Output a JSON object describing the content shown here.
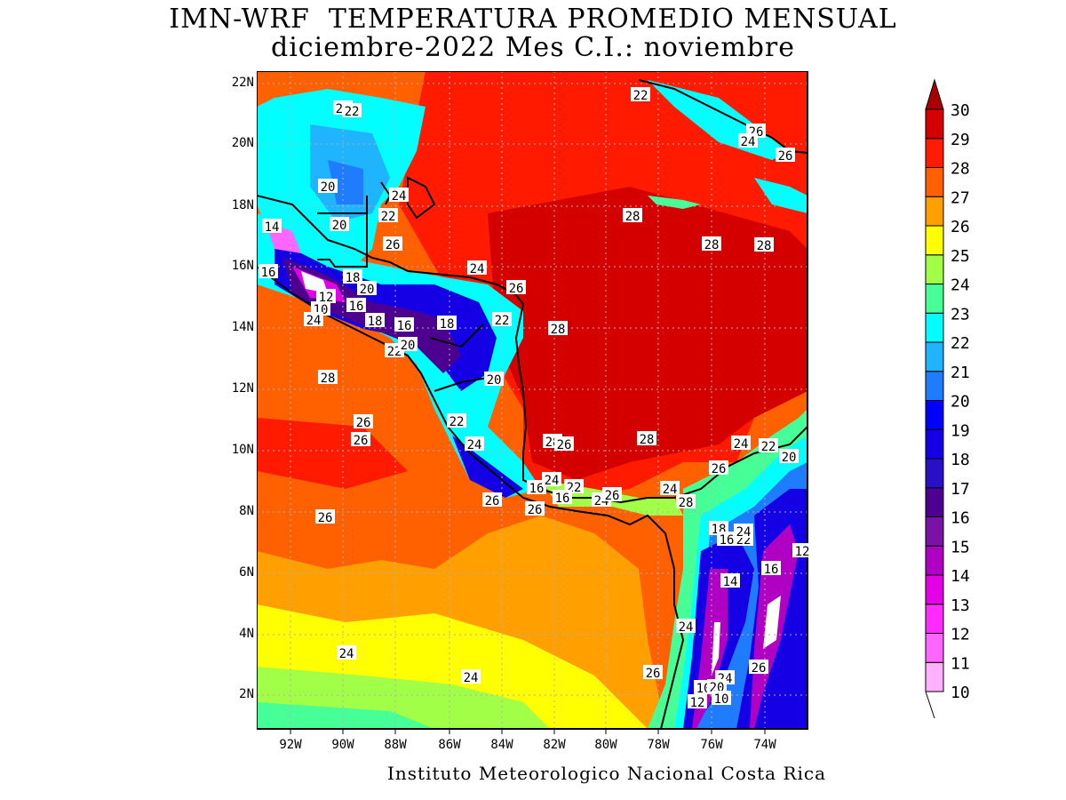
{
  "title": {
    "line1": "IMN-WRF  TEMPERATURA PROMEDIO MENSUAL",
    "line2": "diciembre-2022 Mes C.I.: noviembre"
  },
  "credit": "Instituto Meteorologico Nacional Costa Rica",
  "axes": {
    "lon_ticks": [
      "92W",
      "90W",
      "88W",
      "86W",
      "84W",
      "82W",
      "80W",
      "78W",
      "76W",
      "74W"
    ],
    "lat_ticks": [
      "2N",
      "4N",
      "6N",
      "8N",
      "10N",
      "12N",
      "14N",
      "16N",
      "18N",
      "20N",
      "22N"
    ]
  },
  "colorbar": {
    "levels": [
      "10",
      "11",
      "12",
      "13",
      "14",
      "15",
      "16",
      "17",
      "18",
      "19",
      "20",
      "21",
      "22",
      "23",
      "24",
      "25",
      "26",
      "27",
      "28",
      "29",
      "30"
    ],
    "colors": [
      "#ffb0ff",
      "#ff66ff",
      "#ff2bff",
      "#e400e4",
      "#b000c4",
      "#7a12a8",
      "#4d0090",
      "#2a10c4",
      "#1500e6",
      "#0000ff",
      "#1f7cff",
      "#20b4ff",
      "#00ffff",
      "#46ff96",
      "#a0ff46",
      "#ffff00",
      "#ffa000",
      "#ff6000",
      "#ff1a00",
      "#d40000",
      "#a80000"
    ]
  },
  "contour_labels": [
    {
      "t": "24"
    },
    {
      "t": "22"
    },
    {
      "t": "22"
    },
    {
      "t": "26"
    },
    {
      "t": "24"
    },
    {
      "t": "26"
    },
    {
      "t": "20"
    },
    {
      "t": "24"
    },
    {
      "t": "22"
    },
    {
      "t": "20"
    },
    {
      "t": "14"
    },
    {
      "t": "26"
    },
    {
      "t": "28"
    },
    {
      "t": "28"
    },
    {
      "t": "28"
    },
    {
      "t": "16"
    },
    {
      "t": "18"
    },
    {
      "t": "20"
    },
    {
      "t": "24"
    },
    {
      "t": "26"
    },
    {
      "t": "12"
    },
    {
      "t": "16"
    },
    {
      "t": "10"
    },
    {
      "t": "24"
    },
    {
      "t": "18"
    },
    {
      "t": "16"
    },
    {
      "t": "18"
    },
    {
      "t": "22"
    },
    {
      "t": "28"
    },
    {
      "t": "22"
    },
    {
      "t": "20"
    },
    {
      "t": "28"
    },
    {
      "t": "20"
    },
    {
      "t": "26"
    },
    {
      "t": "26"
    },
    {
      "t": "22"
    },
    {
      "t": "24"
    },
    {
      "t": "28"
    },
    {
      "t": "26"
    },
    {
      "t": "28"
    },
    {
      "t": "24"
    },
    {
      "t": "22"
    },
    {
      "t": "20"
    },
    {
      "t": "26"
    },
    {
      "t": "26"
    },
    {
      "t": "16"
    },
    {
      "t": "24"
    },
    {
      "t": "22"
    },
    {
      "t": "16"
    },
    {
      "t": "24"
    },
    {
      "t": "26"
    },
    {
      "t": "24"
    },
    {
      "t": "26"
    },
    {
      "t": "28"
    },
    {
      "t": "26"
    },
    {
      "t": "18"
    },
    {
      "t": "16"
    },
    {
      "t": "22"
    },
    {
      "t": "24"
    },
    {
      "t": "16"
    },
    {
      "t": "14"
    },
    {
      "t": "24"
    },
    {
      "t": "24"
    },
    {
      "t": "24"
    },
    {
      "t": "26"
    },
    {
      "t": "24"
    },
    {
      "t": "10"
    },
    {
      "t": "20"
    },
    {
      "t": "12"
    },
    {
      "t": "10"
    },
    {
      "t": "26"
    },
    {
      "t": "12"
    }
  ]
}
